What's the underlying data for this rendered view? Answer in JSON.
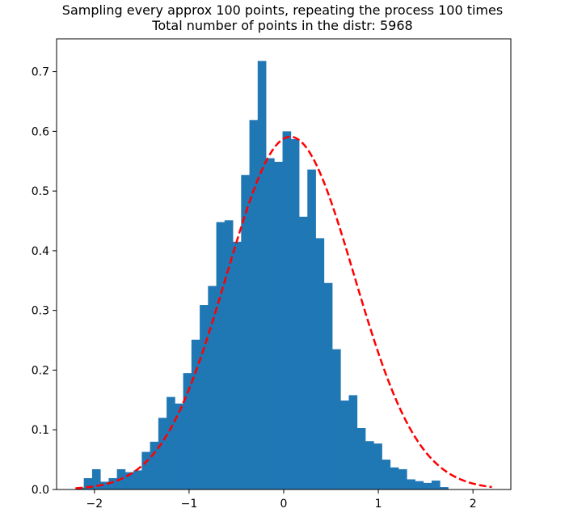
{
  "chart_data": {
    "type": "bar",
    "title_lines": [
      "Sampling every approx 100 points, repeating the process 100 times",
      "Total number of points in the distr: 5968"
    ],
    "xlabel": "",
    "ylabel": "",
    "xlim": [
      -2.4,
      2.4
    ],
    "ylim": [
      0.0,
      0.755
    ],
    "x_ticks": [
      {
        "value": -2,
        "label": "−2"
      },
      {
        "value": -1,
        "label": "−1"
      },
      {
        "value": 0,
        "label": "0"
      },
      {
        "value": 1,
        "label": "1"
      },
      {
        "value": 2,
        "label": "2"
      }
    ],
    "y_ticks": [
      {
        "value": 0.0,
        "label": "0.0"
      },
      {
        "value": 0.1,
        "label": "0.1"
      },
      {
        "value": 0.2,
        "label": "0.2"
      },
      {
        "value": 0.3,
        "label": "0.3"
      },
      {
        "value": 0.4,
        "label": "0.4"
      },
      {
        "value": 0.5,
        "label": "0.5"
      },
      {
        "value": 0.6,
        "label": "0.6"
      },
      {
        "value": 0.7,
        "label": "0.7"
      }
    ],
    "grid": false,
    "series": [
      {
        "type": "histogram",
        "color": "#1f77b4",
        "bin_start": -2.2,
        "bin_width": 0.0875,
        "values": [
          0.003,
          0.019,
          0.034,
          0.013,
          0.019,
          0.034,
          0.029,
          0.032,
          0.063,
          0.08,
          0.12,
          0.155,
          0.144,
          0.195,
          0.251,
          0.309,
          0.341,
          0.448,
          0.451,
          0.415,
          0.527,
          0.619,
          0.718,
          0.555,
          0.549,
          0.6,
          0.587,
          0.457,
          0.536,
          0.421,
          0.346,
          0.235,
          0.149,
          0.158,
          0.103,
          0.081,
          0.077,
          0.05,
          0.037,
          0.034,
          0.017,
          0.014,
          0.011,
          0.015,
          0.004
        ],
        "max_value": 0.718
      },
      {
        "type": "line",
        "style": "dashed",
        "color": "#ff0000",
        "fitted_normal": {
          "mean": 0.07,
          "sigma": 0.675
        }
      }
    ]
  }
}
